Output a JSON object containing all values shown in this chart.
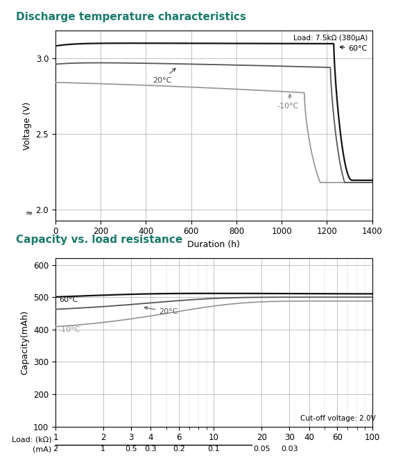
{
  "title1": "Discharge temperature characteristics",
  "title2": "Capacity vs. load resistance",
  "title_color": "#1a7a6e",
  "chart1": {
    "xlabel": "Duration (h)",
    "ylabel": "Voltage (V)",
    "xlim": [
      0,
      1400
    ],
    "ylim": [
      1.93,
      3.18
    ],
    "yticks": [
      2.0,
      2.5,
      3.0
    ],
    "xticks": [
      0,
      200,
      400,
      600,
      800,
      1000,
      1200,
      1400
    ],
    "load_label": "Load: 7.5kΩ (380μA)",
    "annotation_60": "60°C",
    "annotation_20": "20°C",
    "annotation_m10": "-10°C",
    "line_60_color": "#111111",
    "line_20_color": "#555555",
    "line_m10_color": "#999999"
  },
  "chart2": {
    "ylabel": "Capacity(mAh)",
    "ylim": [
      100,
      620
    ],
    "yticks": [
      100,
      200,
      300,
      400,
      500,
      600
    ],
    "cutoff_label": "Cut-off voltage: 2.0V",
    "annotation_60": "60°C",
    "annotation_20": "20°C",
    "annotation_m10": "-10°C",
    "line_60_color": "#111111",
    "line_20_color": "#555555",
    "line_m10_color": "#999999"
  }
}
